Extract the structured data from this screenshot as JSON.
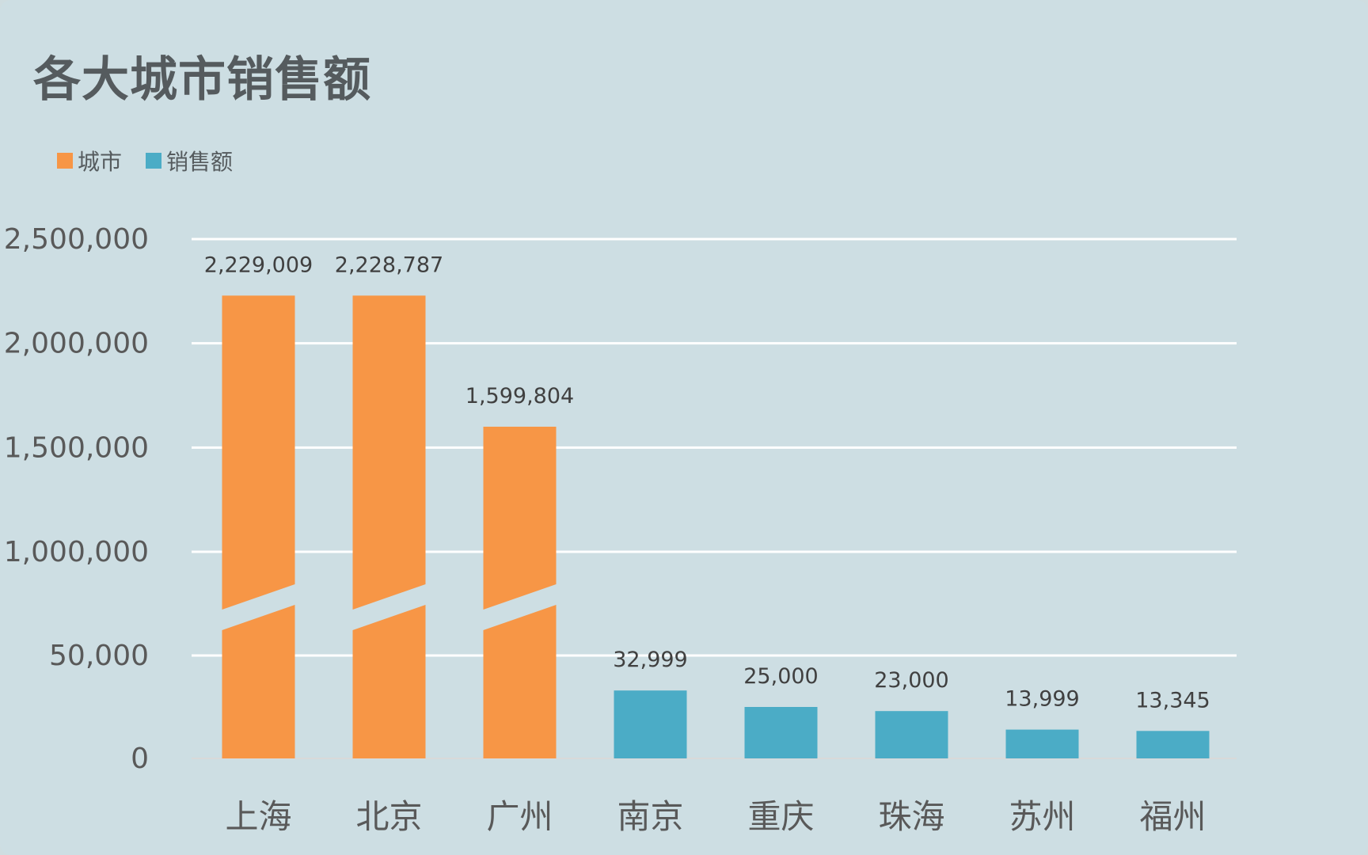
{
  "chart_data": {
    "type": "bar",
    "title": "各大城市销售额",
    "legend": [
      {
        "name": "城市",
        "color": "#f79646"
      },
      {
        "name": "销售额",
        "color": "#4bacc6"
      }
    ],
    "legend_position": "top-left",
    "categories": [
      "上海",
      "北京",
      "广州",
      "南京",
      "重庆",
      "珠海",
      "苏州",
      "福州"
    ],
    "values": [
      2229009,
      2228787,
      1599804,
      32999,
      25000,
      23000,
      13999,
      13345
    ],
    "value_labels": [
      "2,229,009",
      "2,228,787",
      "1,599,804",
      "32,999",
      "25,000",
      "23,000",
      "13,999",
      "13,345"
    ],
    "bar_colors": [
      "#f79646",
      "#f79646",
      "#f79646",
      "#4bacc6",
      "#4bacc6",
      "#4bacc6",
      "#4bacc6",
      "#4bacc6"
    ],
    "broken_axis": true,
    "axis_segments": [
      {
        "min": 0,
        "max": 50000
      },
      {
        "min": 1000000,
        "max": 2500000
      }
    ],
    "y_ticks": [
      0,
      50000,
      1000000,
      1500000,
      2000000,
      2500000
    ],
    "y_tick_labels": [
      "0",
      "50,000",
      "1,000,000",
      "1,500,000",
      "2,000,000",
      "2,500,000"
    ],
    "grid": true,
    "xlabel": "",
    "ylabel": ""
  }
}
